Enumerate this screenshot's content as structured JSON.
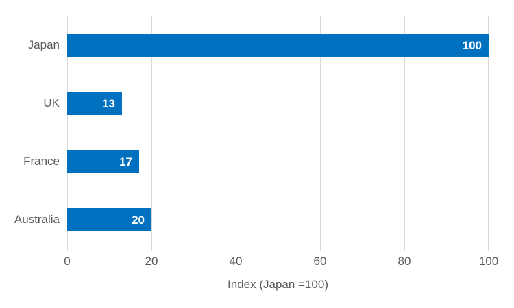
{
  "chart": {
    "bar_color": "#0071C1",
    "gridline_color": "#D9D9D9",
    "axis_text_color": "#595959",
    "value_label_color": "#FFFFFF",
    "background_color": "#FFFFFF"
  },
  "chart_data": {
    "type": "bar",
    "orientation": "horizontal",
    "categories": [
      "Japan",
      "UK",
      "France",
      "Australia"
    ],
    "values": [
      100,
      13,
      17,
      20
    ],
    "data_labels": [
      "100",
      "13",
      "17",
      "20"
    ],
    "xlabel": "Index (Japan =100)",
    "ylabel": "",
    "xlim": [
      0,
      100
    ],
    "xticks": [
      0,
      20,
      40,
      60,
      80,
      100
    ],
    "xtick_labels": [
      "0",
      "20",
      "40",
      "60",
      "80",
      "100"
    ],
    "grid": true,
    "legend": false
  }
}
